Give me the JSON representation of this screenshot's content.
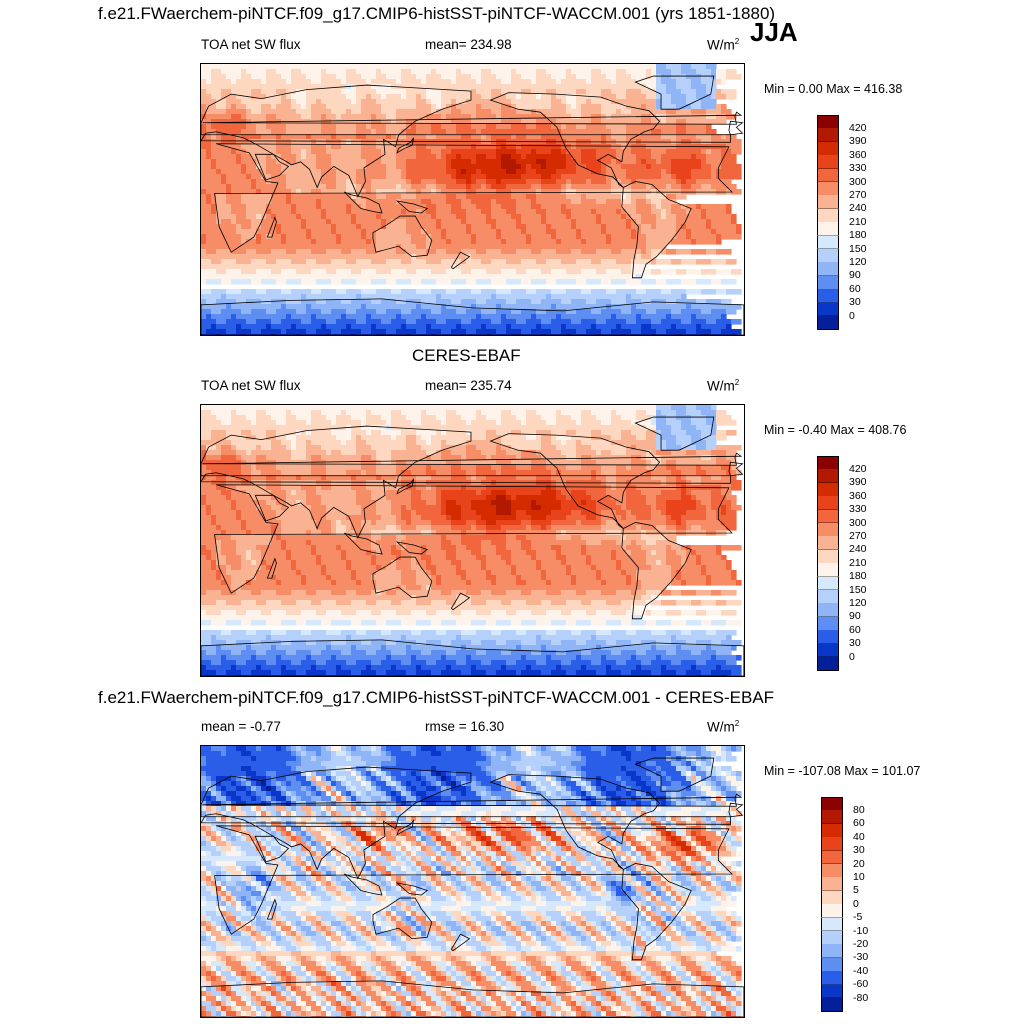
{
  "header": {
    "case_title": "f.e21.FWaerchem-piNTCF.f09_g17.CMIP6-histSST-piNTCF-WACCM.001 (yrs 1851-1880)",
    "season": "JJA"
  },
  "panels": [
    {
      "title": "",
      "left_label": "TOA net SW flux",
      "center_label": "mean= 234.98",
      "units_base": "W/m",
      "units_exp": "2",
      "minmax": "Min =   0.00 Max = 416.38",
      "kind": "absolute"
    },
    {
      "title": "CERES-EBAF",
      "left_label": "TOA net SW flux",
      "center_label": "mean= 235.74",
      "units_base": "W/m",
      "units_exp": "2",
      "minmax": "Min =  -0.40 Max = 408.76",
      "kind": "absolute"
    },
    {
      "title": "f.e21.FWaerchem-piNTCF.f09_g17.CMIP6-histSST-piNTCF-WACCM.001 - CERES-EBAF",
      "left_label": "mean =  -0.77",
      "center_label": "rmse =  16.30",
      "units_base": "W/m",
      "units_exp": "2",
      "minmax": "Min = -107.08 Max = 101.07",
      "kind": "difference"
    }
  ],
  "colorbars": {
    "absolute": {
      "labels": [
        "420",
        "390",
        "360",
        "330",
        "300",
        "270",
        "240",
        "210",
        "180",
        "150",
        "120",
        "90",
        "60",
        "30",
        "0"
      ],
      "colors": [
        "#8b0000",
        "#b31900",
        "#d42b00",
        "#e8431a",
        "#f2663d",
        "#f78d66",
        "#fab392",
        "#fdd7bf",
        "#fdf3ea",
        "#d6e8fc",
        "#b5d1fb",
        "#8fb5f7",
        "#5e8ef2",
        "#2a5ee8",
        "#0a36c9",
        "#041f9a"
      ]
    },
    "difference": {
      "labels": [
        "80",
        "60",
        "40",
        "30",
        "20",
        "10",
        "5",
        "0",
        "-5",
        "-10",
        "-20",
        "-30",
        "-40",
        "-60",
        "-80"
      ],
      "colors": [
        "#8b0000",
        "#b31900",
        "#d42b00",
        "#e8431a",
        "#f2663d",
        "#f78d66",
        "#fab392",
        "#fdd7bf",
        "#fdf3ea",
        "#d6e8fc",
        "#b5d1fb",
        "#8fb5f7",
        "#5e8ef2",
        "#2a5ee8",
        "#0a36c9",
        "#041f9a"
      ]
    }
  }
}
